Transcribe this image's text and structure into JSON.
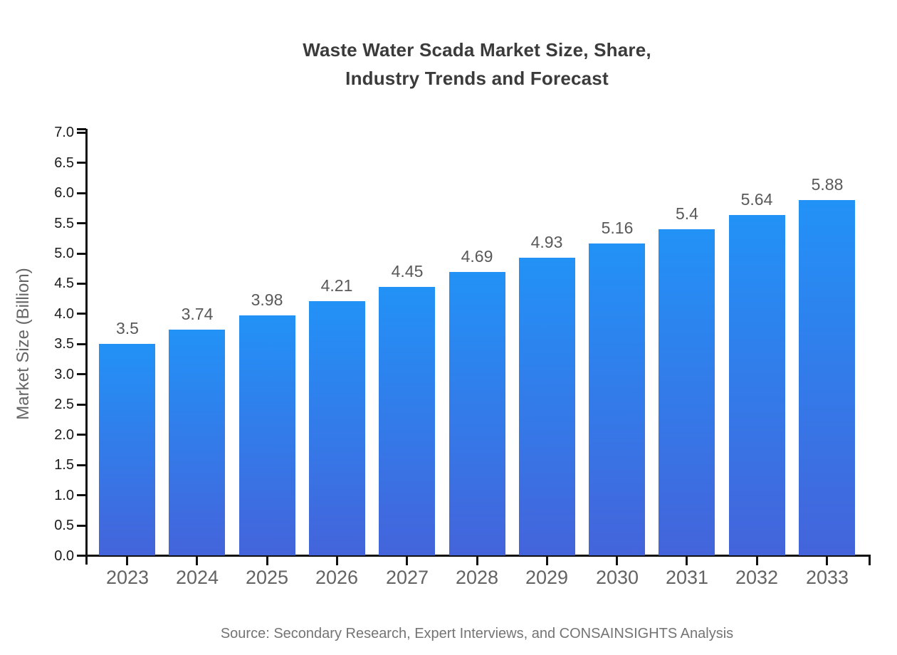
{
  "page": {
    "title_lines": "Waste Water Scada Market Size, Share,\nIndustry Trends and Forecast",
    "source_note": "Source: Secondary Research, Expert Interviews, and CONSAINSIGHTS Analysis"
  },
  "chart_data": {
    "type": "bar",
    "title": "Waste Water Scada Market Size, Share, Industry Trends and Forecast",
    "categories": [
      "2023",
      "2024",
      "2025",
      "2026",
      "2027",
      "2028",
      "2029",
      "2030",
      "2031",
      "2032",
      "2033"
    ],
    "values": [
      3.5,
      3.74,
      3.98,
      4.21,
      4.45,
      4.69,
      4.93,
      5.16,
      5.4,
      5.64,
      5.88
    ],
    "value_labels": [
      "3.5",
      "3.74",
      "3.98",
      "4.21",
      "4.45",
      "4.69",
      "4.93",
      "5.16",
      "5.4",
      "5.64",
      "5.88"
    ],
    "xlabel": "",
    "ylabel": "Market Size (Billion)",
    "ylim": [
      0.0,
      7.0
    ],
    "ytick_step": 0.5,
    "grid": false,
    "legend_position": "none",
    "source": "Source: Secondary Research, Expert Interviews, and CONSAINSIGHTS Analysis",
    "colors": {
      "bar_gradient_top": "#2292F7",
      "bar_gradient_bottom": "#4464DB",
      "axis": "#111111",
      "ytick_label": "#1a1a1a",
      "xtick_label": "#636363",
      "value_label": "#595959",
      "title": "#3b3b3b",
      "axis_title": "#666666",
      "source_text": "#747474"
    }
  }
}
